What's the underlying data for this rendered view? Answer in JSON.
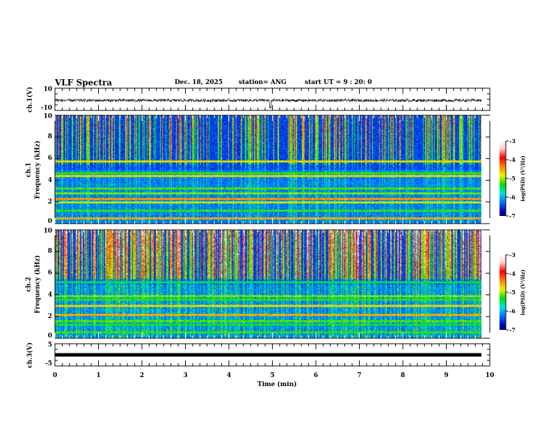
{
  "header": {
    "title": "VLF Spectra",
    "date": "Dec. 18, 2025",
    "station": "station= ANG",
    "start": "start  UT =   9 : 20: 0"
  },
  "chart_data": {
    "type": "heatmap",
    "xlabel": "Time (min)",
    "xlim": [
      0,
      10
    ],
    "xticks": [
      "0",
      "1",
      "2",
      "3",
      "4",
      "5",
      "6",
      "7",
      "8",
      "9",
      "10"
    ],
    "data_end_min": 9.8,
    "panels": [
      {
        "id": "ch1-wave",
        "type": "line",
        "ylabel": "ch.1(V)",
        "ylim": [
          -10,
          10
        ],
        "yticks": [
          "10",
          "-10"
        ],
        "mean_value": -1,
        "spike_at_min": 4.95
      },
      {
        "id": "ch1-spec",
        "type": "heatmap",
        "ylabel": "ch.1\nFrequency (kHz)",
        "ylabel_top": "ch.1",
        "ylabel_bottom": "Frequency (kHz)",
        "ylim": [
          0,
          10
        ],
        "yticks": [
          "0",
          "2",
          "4",
          "6",
          "8",
          "10"
        ],
        "bands_khz": [
          0.5,
          1.2,
          2.0,
          2.3,
          2.8,
          3.3,
          4.4,
          4.7,
          5.8
        ],
        "sferic_density": 0.35,
        "high_freq_intensity": 0.45
      },
      {
        "id": "ch2-spec",
        "type": "heatmap",
        "ylabel_top": "ch.2",
        "ylabel_bottom": "Frequency (kHz)",
        "ylim": [
          0,
          10
        ],
        "yticks": [
          "0",
          "2",
          "4",
          "6",
          "8",
          "10"
        ],
        "bands_khz": [
          0.6,
          1.3,
          1.6,
          2.2,
          3.0,
          3.6,
          3.9,
          5.2
        ],
        "sferic_density": 0.55,
        "high_freq_intensity": 0.75
      },
      {
        "id": "ch3-wave",
        "type": "line",
        "ylabel": "ch.3(V)",
        "ylim": [
          -5,
          5
        ],
        "yticks": [
          "5",
          "-5"
        ],
        "mean_value": 0
      }
    ],
    "colorbar": {
      "label": "log(PSD) (V²/Hz)",
      "range": [
        -7,
        -3
      ],
      "ticks": [
        "-3",
        "-4",
        "-5",
        "-6",
        "-7"
      ],
      "colors": [
        "#000030",
        "#0000c0",
        "#0070ff",
        "#00e0e0",
        "#00e000",
        "#f0f000",
        "#ff8000",
        "#ff0000",
        "#ffd0d0",
        "#ffffff"
      ]
    }
  }
}
